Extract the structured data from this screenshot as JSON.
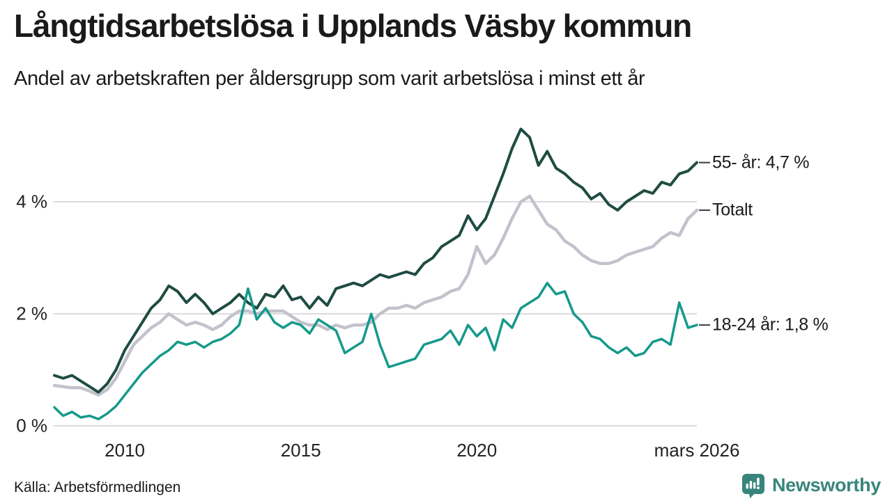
{
  "header": {
    "title": "Långtidsarbetslösa i Upplands Väsby kommun",
    "subtitle": "Andel av arbetskraften per åldersgrupp som varit arbetslösa i minst ett år"
  },
  "chart_data": {
    "type": "line",
    "title": "Långtidsarbetslösa i Upplands Väsby kommun",
    "subtitle": "Andel av arbetskraften per åldersgrupp som varit arbetslösa i minst ett år",
    "unit": "% av arbetskraften",
    "grid": true,
    "x_range": [
      2008,
      2026.25
    ],
    "ylim": [
      0,
      5.6
    ],
    "y_axis": {
      "ticks": [
        {
          "value": 0,
          "label": "0 %"
        },
        {
          "value": 2,
          "label": "2 %"
        },
        {
          "value": 4,
          "label": "4 %"
        }
      ]
    },
    "x_axis": {
      "ticks": [
        {
          "year": 2010,
          "label": "2010"
        },
        {
          "year": 2015,
          "label": "2015"
        },
        {
          "year": 2020,
          "label": "2020"
        },
        {
          "year": 2026.25,
          "label": "mars 2026"
        }
      ]
    },
    "x_start": 2008,
    "x_step": 0.25,
    "series": [
      {
        "name": "Totalt",
        "end_label": "Totalt",
        "end_value": 3.85,
        "color": "#c3c2cc",
        "stroke_width": 4.5,
        "values": [
          0.72,
          0.7,
          0.68,
          0.68,
          0.62,
          0.55,
          0.65,
          0.85,
          1.15,
          1.45,
          1.6,
          1.75,
          1.85,
          2.0,
          1.9,
          1.8,
          1.85,
          1.8,
          1.72,
          1.8,
          1.95,
          2.05,
          2.05,
          2.0,
          2.05,
          2.05,
          2.05,
          1.95,
          1.85,
          1.8,
          1.8,
          1.72,
          1.8,
          1.75,
          1.8,
          1.8,
          1.85,
          2.0,
          2.1,
          2.1,
          2.15,
          2.1,
          2.2,
          2.25,
          2.3,
          2.4,
          2.45,
          2.7,
          3.2,
          2.9,
          3.05,
          3.35,
          3.7,
          4.0,
          4.1,
          3.85,
          3.6,
          3.5,
          3.3,
          3.2,
          3.05,
          2.95,
          2.9,
          2.9,
          2.95,
          3.05,
          3.1,
          3.15,
          3.2,
          3.35,
          3.45,
          3.4,
          3.7,
          3.85
        ]
      },
      {
        "name": "55- år",
        "end_label": "55- år: 4,7 %",
        "end_value": 4.7,
        "color": "#1f4c42",
        "stroke_width": 4,
        "values": [
          0.9,
          0.85,
          0.9,
          0.8,
          0.7,
          0.6,
          0.75,
          1.0,
          1.35,
          1.6,
          1.85,
          2.1,
          2.25,
          2.5,
          2.4,
          2.2,
          2.35,
          2.2,
          2.0,
          2.1,
          2.2,
          2.35,
          2.2,
          2.1,
          2.35,
          2.3,
          2.5,
          2.25,
          2.3,
          2.1,
          2.3,
          2.15,
          2.45,
          2.5,
          2.55,
          2.5,
          2.6,
          2.7,
          2.65,
          2.7,
          2.75,
          2.7,
          2.9,
          3.0,
          3.2,
          3.3,
          3.4,
          3.75,
          3.5,
          3.7,
          4.1,
          4.5,
          4.95,
          5.3,
          5.15,
          4.65,
          4.9,
          4.6,
          4.5,
          4.35,
          4.25,
          4.05,
          4.15,
          3.95,
          3.85,
          4.0,
          4.1,
          4.2,
          4.15,
          4.35,
          4.3,
          4.5,
          4.55,
          4.7
        ]
      },
      {
        "name": "18-24 år",
        "end_label": "18-24 år: 1,8 %",
        "end_value": 1.8,
        "color": "#14998a",
        "stroke_width": 3.5,
        "values": [
          0.33,
          0.18,
          0.25,
          0.15,
          0.18,
          0.12,
          0.22,
          0.35,
          0.55,
          0.75,
          0.95,
          1.1,
          1.25,
          1.35,
          1.5,
          1.45,
          1.5,
          1.4,
          1.5,
          1.55,
          1.65,
          1.8,
          2.45,
          1.9,
          2.1,
          1.85,
          1.75,
          1.85,
          1.8,
          1.65,
          1.9,
          1.8,
          1.7,
          1.3,
          1.4,
          1.5,
          2.0,
          1.45,
          1.05,
          1.1,
          1.15,
          1.2,
          1.45,
          1.5,
          1.55,
          1.7,
          1.45,
          1.8,
          1.6,
          1.75,
          1.35,
          1.9,
          1.75,
          2.1,
          2.2,
          2.3,
          2.55,
          2.35,
          2.4,
          2.0,
          1.85,
          1.6,
          1.55,
          1.4,
          1.3,
          1.4,
          1.25,
          1.3,
          1.5,
          1.55,
          1.45,
          2.2,
          1.75,
          1.8
        ]
      }
    ],
    "colors": {
      "gridline": "#dcdce0",
      "tick_text": "#222222",
      "annotation_tick": "#3a3a3a"
    },
    "legend_position": "right-annotations"
  },
  "footer": {
    "source": "Källa: Arbetsförmedlingen",
    "brand": "Newsworthy",
    "brand_color": "#37857c",
    "brand_icon": "bar-chart-speech-bubble-icon"
  }
}
